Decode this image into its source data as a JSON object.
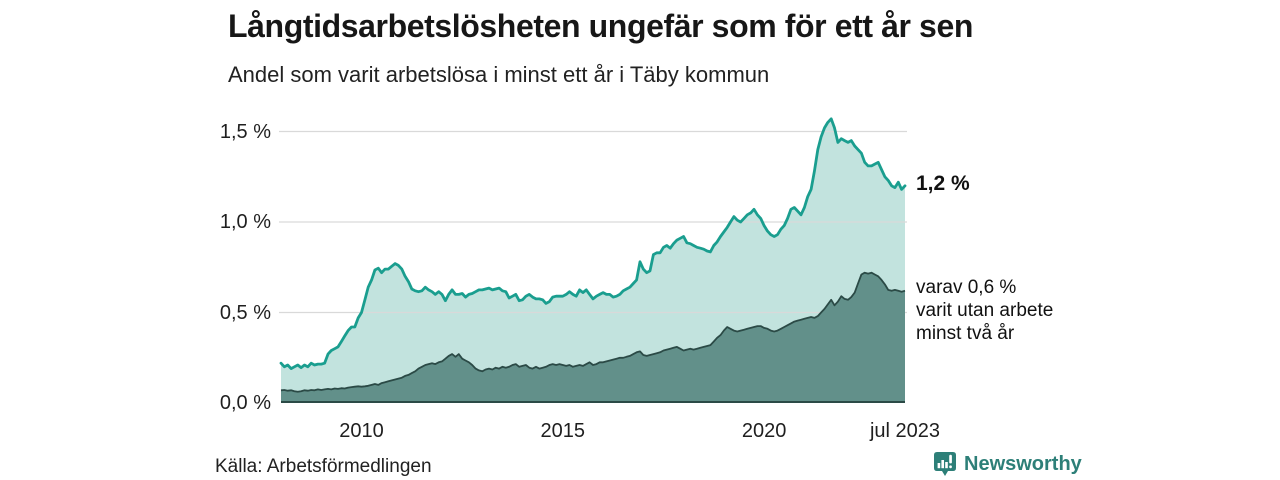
{
  "header": {
    "title": "Långtidsarbetslösheten ungefär som för ett år sen",
    "subtitle": "Andel som varit arbetslösa i minst ett år i Täby kommun"
  },
  "annotations": {
    "latest_total": "1,2 %",
    "latest_two_year_lines": [
      "varav 0,6 %",
      "varit utan arbete",
      "minst två år"
    ]
  },
  "source": "Källa: Arbetsförmedlingen",
  "branding": {
    "name": "Newsworthy",
    "icon": "bar-chart-speech-bubble"
  },
  "colors": {
    "line_total": "#1a9e8f",
    "fill_total": "#c2e3de",
    "line_two_year": "#2b4a46",
    "fill_two_year": "#62908a",
    "gridline": "#d9d9d9",
    "text": "#1f1f1f",
    "brand": "#2d7f78"
  },
  "chart_data": {
    "type": "area",
    "frequency": "monthly",
    "x_start": "2008-01",
    "x_end": "2023-07",
    "unit": "%",
    "ylim": [
      0,
      1.65
    ],
    "grid": "horizontal",
    "legend": "none",
    "y_ticks": [
      {
        "value": 0,
        "label": "0,0 %"
      },
      {
        "value": 0.5,
        "label": "0,5 %"
      },
      {
        "value": 1,
        "label": "1,0 %"
      },
      {
        "value": 1.5,
        "label": "1,5 %"
      }
    ],
    "x_ticks": [
      {
        "year": 2010,
        "label": "2010"
      },
      {
        "year": 2015,
        "label": "2015"
      },
      {
        "year": 2020,
        "label": "2020"
      },
      {
        "year": 2023.5,
        "label": "jul 2023"
      }
    ],
    "series": [
      {
        "name": "Andel arbetslösa minst ett år",
        "latest_value": 1.2,
        "values": [
          0.22,
          0.2,
          0.21,
          0.19,
          0.2,
          0.21,
          0.195,
          0.21,
          0.2,
          0.22,
          0.21,
          0.215,
          0.215,
          0.22,
          0.27,
          0.29,
          0.3,
          0.31,
          0.34,
          0.37,
          0.4,
          0.42,
          0.42,
          0.47,
          0.5,
          0.57,
          0.64,
          0.68,
          0.735,
          0.745,
          0.72,
          0.74,
          0.74,
          0.755,
          0.77,
          0.76,
          0.74,
          0.7,
          0.67,
          0.63,
          0.62,
          0.615,
          0.62,
          0.64,
          0.625,
          0.615,
          0.6,
          0.615,
          0.6,
          0.565,
          0.6,
          0.625,
          0.6,
          0.6,
          0.605,
          0.585,
          0.6,
          0.605,
          0.615,
          0.625,
          0.625,
          0.63,
          0.635,
          0.625,
          0.63,
          0.635,
          0.62,
          0.615,
          0.58,
          0.59,
          0.6,
          0.565,
          0.57,
          0.59,
          0.6,
          0.585,
          0.575,
          0.575,
          0.57,
          0.55,
          0.56,
          0.585,
          0.59,
          0.59,
          0.59,
          0.6,
          0.615,
          0.6,
          0.59,
          0.625,
          0.61,
          0.625,
          0.6,
          0.575,
          0.59,
          0.6,
          0.61,
          0.6,
          0.6,
          0.585,
          0.59,
          0.6,
          0.62,
          0.63,
          0.64,
          0.66,
          0.68,
          0.78,
          0.74,
          0.72,
          0.73,
          0.82,
          0.83,
          0.83,
          0.86,
          0.87,
          0.855,
          0.88,
          0.9,
          0.91,
          0.92,
          0.885,
          0.88,
          0.87,
          0.86,
          0.855,
          0.85,
          0.84,
          0.835,
          0.87,
          0.89,
          0.92,
          0.945,
          0.97,
          1.0,
          1.03,
          1.01,
          1.0,
          1.02,
          1.04,
          1.05,
          1.07,
          1.04,
          1.02,
          0.98,
          0.95,
          0.93,
          0.92,
          0.93,
          0.96,
          0.98,
          1.02,
          1.07,
          1.08,
          1.06,
          1.04,
          1.08,
          1.14,
          1.18,
          1.28,
          1.4,
          1.47,
          1.52,
          1.55,
          1.57,
          1.52,
          1.44,
          1.46,
          1.45,
          1.44,
          1.45,
          1.42,
          1.4,
          1.38,
          1.33,
          1.31,
          1.31,
          1.32,
          1.33,
          1.29,
          1.25,
          1.23,
          1.2,
          1.19,
          1.22,
          1.18,
          1.2
        ]
      },
      {
        "name": "varav utan arbete minst två år",
        "latest_value": 0.6,
        "values": [
          0.07,
          0.072,
          0.068,
          0.07,
          0.065,
          0.062,
          0.065,
          0.07,
          0.068,
          0.072,
          0.07,
          0.075,
          0.072,
          0.075,
          0.078,
          0.075,
          0.08,
          0.078,
          0.082,
          0.08,
          0.085,
          0.088,
          0.09,
          0.092,
          0.09,
          0.092,
          0.095,
          0.1,
          0.105,
          0.1,
          0.11,
          0.115,
          0.12,
          0.125,
          0.13,
          0.135,
          0.14,
          0.15,
          0.155,
          0.165,
          0.175,
          0.19,
          0.2,
          0.21,
          0.215,
          0.22,
          0.215,
          0.225,
          0.23,
          0.245,
          0.26,
          0.27,
          0.255,
          0.27,
          0.245,
          0.235,
          0.225,
          0.21,
          0.19,
          0.18,
          0.175,
          0.185,
          0.19,
          0.185,
          0.195,
          0.19,
          0.2,
          0.195,
          0.2,
          0.21,
          0.215,
          0.2,
          0.205,
          0.21,
          0.195,
          0.19,
          0.2,
          0.19,
          0.195,
          0.2,
          0.21,
          0.215,
          0.21,
          0.215,
          0.21,
          0.205,
          0.21,
          0.2,
          0.205,
          0.21,
          0.205,
          0.215,
          0.225,
          0.21,
          0.215,
          0.225,
          0.225,
          0.23,
          0.235,
          0.24,
          0.245,
          0.25,
          0.25,
          0.255,
          0.26,
          0.27,
          0.28,
          0.285,
          0.265,
          0.26,
          0.265,
          0.27,
          0.275,
          0.28,
          0.29,
          0.295,
          0.3,
          0.305,
          0.31,
          0.3,
          0.29,
          0.295,
          0.3,
          0.295,
          0.3,
          0.305,
          0.31,
          0.315,
          0.32,
          0.34,
          0.36,
          0.375,
          0.4,
          0.42,
          0.41,
          0.4,
          0.395,
          0.4,
          0.405,
          0.41,
          0.415,
          0.42,
          0.425,
          0.425,
          0.415,
          0.41,
          0.4,
          0.395,
          0.4,
          0.41,
          0.42,
          0.43,
          0.44,
          0.45,
          0.455,
          0.46,
          0.465,
          0.47,
          0.475,
          0.47,
          0.48,
          0.5,
          0.52,
          0.545,
          0.57,
          0.54,
          0.56,
          0.59,
          0.575,
          0.57,
          0.585,
          0.61,
          0.66,
          0.71,
          0.72,
          0.715,
          0.72,
          0.71,
          0.7,
          0.68,
          0.655,
          0.625,
          0.62,
          0.625,
          0.62,
          0.615,
          0.62
        ]
      }
    ]
  }
}
